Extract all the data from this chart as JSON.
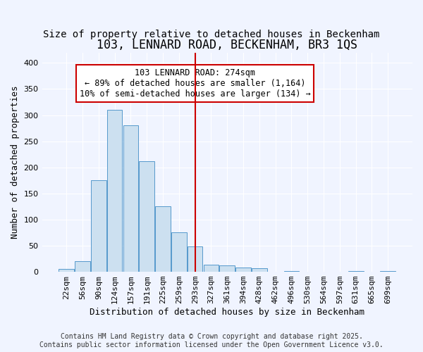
{
  "title": "103, LENNARD ROAD, BECKENHAM, BR3 1QS",
  "subtitle": "Size of property relative to detached houses in Beckenham",
  "xlabel": "Distribution of detached houses by size in Beckenham",
  "ylabel": "Number of detached properties",
  "bin_labels": [
    "22sqm",
    "56sqm",
    "90sqm",
    "124sqm",
    "157sqm",
    "191sqm",
    "225sqm",
    "259sqm",
    "293sqm",
    "327sqm",
    "361sqm",
    "394sqm",
    "428sqm",
    "462sqm",
    "496sqm",
    "530sqm",
    "564sqm",
    "597sqm",
    "631sqm",
    "665sqm",
    "699sqm"
  ],
  "bar_values": [
    6,
    20,
    175,
    310,
    280,
    212,
    125,
    75,
    48,
    14,
    12,
    8,
    7,
    0,
    1,
    0,
    0,
    0,
    1,
    0,
    2
  ],
  "bar_color": "#cce0f0",
  "bar_edge_color": "#5599cc",
  "vline_x": 8.0,
  "vline_color": "#cc0000",
  "annotation_text": "103 LENNARD ROAD: 274sqm\n← 89% of detached houses are smaller (1,164)\n10% of semi-detached houses are larger (134) →",
  "annotation_box_color": "#cc0000",
  "annotation_fontsize": 8.5,
  "title_fontsize": 12,
  "subtitle_fontsize": 10,
  "xlabel_fontsize": 9,
  "ylabel_fontsize": 9,
  "tick_fontsize": 8,
  "ylim": [
    0,
    420
  ],
  "yticks": [
    0,
    50,
    100,
    150,
    200,
    250,
    300,
    350,
    400
  ],
  "footer_text": "Contains HM Land Registry data © Crown copyright and database right 2025.\nContains public sector information licensed under the Open Government Licence v3.0.",
  "bg_color": "#f0f4ff",
  "grid_color": "#ffffff"
}
